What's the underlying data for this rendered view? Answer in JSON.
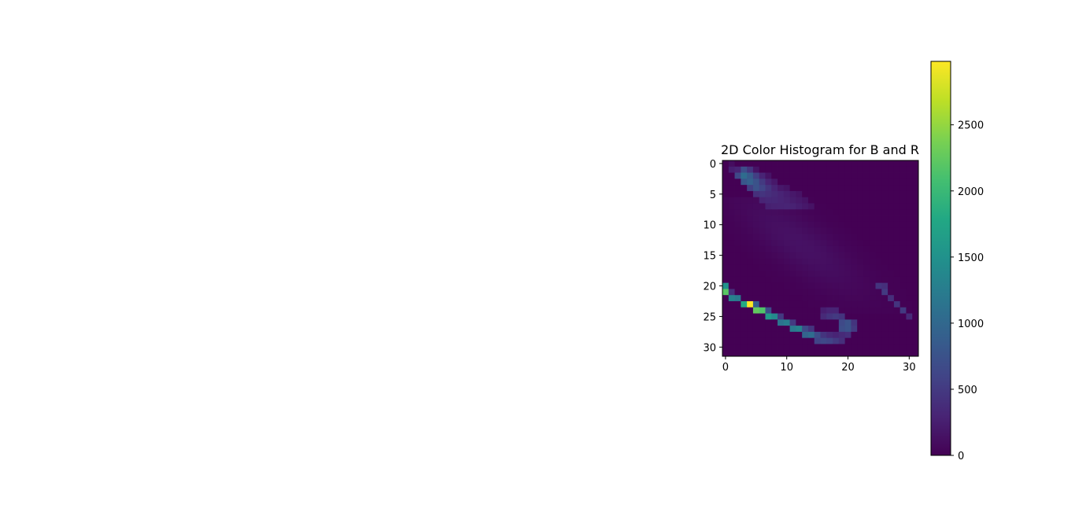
{
  "chart_data": {
    "type": "heatmap",
    "title": "2D Color Histogram for B and R",
    "xlabel": "",
    "ylabel": "",
    "grid": false,
    "colormap": "viridis",
    "rows": 32,
    "cols": 32,
    "x_ticks": [
      0,
      10,
      20,
      30
    ],
    "y_ticks": [
      0,
      5,
      10,
      15,
      20,
      25,
      30
    ],
    "xlim": [
      -0.5,
      31.5
    ],
    "ylim": [
      31.5,
      -0.5
    ],
    "colorbar": {
      "min": 0,
      "max": 2980,
      "ticks": [
        0,
        500,
        1000,
        1500,
        2000,
        2500
      ]
    },
    "ridge_upper": [
      [
        0,
        1,
        100
      ],
      [
        1,
        1,
        250
      ],
      [
        1,
        2,
        300
      ],
      [
        1,
        3,
        700
      ],
      [
        1,
        4,
        450
      ],
      [
        1,
        5,
        150
      ],
      [
        2,
        2,
        650
      ],
      [
        2,
        3,
        1050
      ],
      [
        2,
        4,
        850
      ],
      [
        2,
        5,
        550
      ],
      [
        2,
        6,
        300
      ],
      [
        2,
        7,
        150
      ],
      [
        3,
        3,
        800
      ],
      [
        3,
        4,
        900
      ],
      [
        3,
        5,
        750
      ],
      [
        3,
        6,
        500
      ],
      [
        3,
        7,
        300
      ],
      [
        3,
        8,
        200
      ],
      [
        4,
        4,
        550
      ],
      [
        4,
        5,
        750
      ],
      [
        4,
        6,
        600
      ],
      [
        4,
        7,
        450
      ],
      [
        4,
        8,
        300
      ],
      [
        4,
        9,
        200
      ],
      [
        4,
        10,
        150
      ],
      [
        5,
        5,
        400
      ],
      [
        5,
        6,
        450
      ],
      [
        5,
        7,
        400
      ],
      [
        5,
        8,
        350
      ],
      [
        5,
        9,
        300
      ],
      [
        5,
        10,
        250
      ],
      [
        5,
        11,
        200
      ],
      [
        5,
        12,
        150
      ],
      [
        6,
        6,
        300
      ],
      [
        6,
        7,
        330
      ],
      [
        6,
        8,
        330
      ],
      [
        6,
        9,
        300
      ],
      [
        6,
        10,
        270
      ],
      [
        6,
        11,
        230
      ],
      [
        6,
        12,
        200
      ],
      [
        6,
        13,
        150
      ],
      [
        7,
        7,
        260
      ],
      [
        7,
        8,
        280
      ],
      [
        7,
        9,
        290
      ],
      [
        7,
        10,
        300
      ],
      [
        7,
        11,
        280
      ],
      [
        7,
        12,
        240
      ],
      [
        7,
        13,
        200
      ],
      [
        7,
        14,
        150
      ]
    ],
    "ridge_lower": [
      [
        20,
        0,
        1500
      ],
      [
        21,
        0,
        2200
      ],
      [
        21,
        1,
        400
      ],
      [
        22,
        1,
        1300
      ],
      [
        22,
        2,
        1200
      ],
      [
        23,
        3,
        1800
      ],
      [
        23,
        4,
        2980
      ],
      [
        23,
        5,
        900
      ],
      [
        24,
        5,
        2250
      ],
      [
        24,
        6,
        2150
      ],
      [
        24,
        7,
        700
      ],
      [
        25,
        7,
        1600
      ],
      [
        25,
        8,
        1400
      ],
      [
        25,
        9,
        500
      ],
      [
        26,
        9,
        1150
      ],
      [
        26,
        10,
        1250
      ],
      [
        26,
        11,
        500
      ],
      [
        27,
        11,
        1200
      ],
      [
        27,
        12,
        1300
      ],
      [
        27,
        13,
        650
      ],
      [
        27,
        14,
        450
      ],
      [
        28,
        13,
        950
      ],
      [
        28,
        14,
        1050
      ],
      [
        28,
        15,
        700
      ],
      [
        28,
        16,
        450
      ],
      [
        29,
        15,
        600
      ],
      [
        29,
        16,
        650
      ],
      [
        29,
        17,
        600
      ],
      [
        29,
        18,
        500
      ],
      [
        29,
        19,
        400
      ],
      [
        28,
        17,
        350
      ],
      [
        28,
        18,
        300
      ],
      [
        28,
        19,
        350
      ],
      [
        28,
        20,
        400
      ],
      [
        27,
        19,
        700
      ],
      [
        27,
        20,
        750
      ],
      [
        27,
        21,
        500
      ],
      [
        26,
        19,
        650
      ],
      [
        26,
        20,
        750
      ],
      [
        26,
        21,
        450
      ],
      [
        25,
        16,
        350
      ],
      [
        25,
        17,
        450
      ],
      [
        25,
        18,
        500
      ],
      [
        25,
        19,
        450
      ],
      [
        24,
        16,
        250
      ],
      [
        24,
        17,
        300
      ],
      [
        24,
        18,
        300
      ],
      [
        20,
        25,
        450
      ],
      [
        20,
        26,
        400
      ],
      [
        21,
        26,
        500
      ],
      [
        22,
        27,
        400
      ],
      [
        23,
        28,
        450
      ],
      [
        24,
        29,
        500
      ],
      [
        25,
        30,
        350
      ]
    ]
  }
}
